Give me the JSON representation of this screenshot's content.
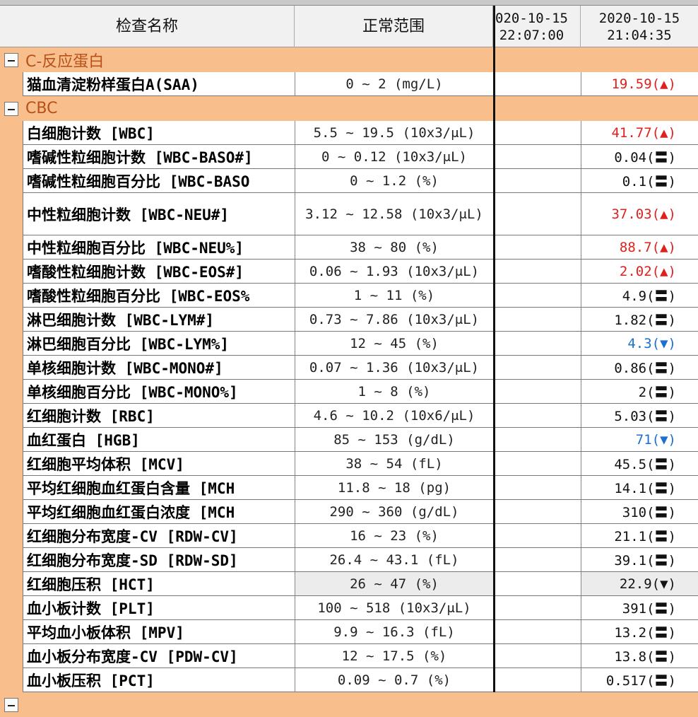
{
  "header": {
    "col_name": "检查名称",
    "col_range": "正常范围",
    "col_date1": "020-10-15\n22:07:00",
    "col_date2": "2020-10-15\n21:04:35"
  },
  "colors": {
    "group_bg": "#f8bf8c",
    "group_text": "#b8501a",
    "high": "#e0201c",
    "low": "#1a6fd0",
    "normal": "#111111"
  },
  "groups": [
    {
      "title": "C-反应蛋白",
      "rows": [
        {
          "name": "猫血清淀粉样蛋白A(SAA)",
          "range": "0 ~ 2 (mg/L)",
          "value": "19.59(▲)",
          "status": "high"
        }
      ]
    },
    {
      "title": "CBC",
      "rows": [
        {
          "name": "白细胞计数 [WBC]",
          "range": "5.5 ~ 19.5 (10x3/μL)",
          "value": "41.77(▲)",
          "status": "high"
        },
        {
          "name": "嗜碱性粒细胞计数 [WBC-BASO#]",
          "range": "0 ~ 0.12 (10x3/μL)",
          "value": "0.04(〓)",
          "status": "normal"
        },
        {
          "name": "嗜碱性粒细胞百分比 [WBC-BASO",
          "range": "0 ~ 1.2 (%)",
          "value": "0.1(〓)",
          "status": "normal"
        },
        {
          "name": "中性粒细胞计数 [WBC-NEU#]",
          "range": "3.12 ~ 12.58 (10x3/μL)",
          "value": "37.03(▲)",
          "status": "high",
          "tall": true
        },
        {
          "name": "中性粒细胞百分比 [WBC-NEU%]",
          "range": "38 ~ 80 (%)",
          "value": "88.7(▲)",
          "status": "high"
        },
        {
          "name": "嗜酸性粒细胞计数 [WBC-EOS#]",
          "range": "0.06 ~ 1.93 (10x3/μL)",
          "value": "2.02(▲)",
          "status": "high"
        },
        {
          "name": "嗜酸性粒细胞百分比 [WBC-EOS%",
          "range": "1 ~ 11 (%)",
          "value": "4.9(〓)",
          "status": "normal"
        },
        {
          "name": "淋巴细胞计数 [WBC-LYM#]",
          "range": "0.73 ~ 7.86 (10x3/μL)",
          "value": "1.82(〓)",
          "status": "normal"
        },
        {
          "name": "淋巴细胞百分比 [WBC-LYM%]",
          "range": "12 ~ 45 (%)",
          "value": "4.3(▼)",
          "status": "low"
        },
        {
          "name": "单核细胞计数 [WBC-MONO#]",
          "range": "0.07 ~ 1.36 (10x3/μL)",
          "value": "0.86(〓)",
          "status": "normal"
        },
        {
          "name": "单核细胞百分比 [WBC-MONO%]",
          "range": "1 ~ 8 (%)",
          "value": "2(〓)",
          "status": "normal"
        },
        {
          "name": "红细胞计数 [RBC]",
          "range": "4.6 ~ 10.2 (10x6/μL)",
          "value": "5.03(〓)",
          "status": "normal"
        },
        {
          "name": "血红蛋白 [HGB]",
          "range": "85 ~ 153 (g/dL)",
          "value": "71(▼)",
          "status": "low"
        },
        {
          "name": "红细胞平均体积 [MCV]",
          "range": "38 ~ 54 (fL)",
          "value": "45.5(〓)",
          "status": "normal"
        },
        {
          "name": "平均红细胞血红蛋白含量  [MCH",
          "range": "11.8 ~ 18 (pg)",
          "value": "14.1(〓)",
          "status": "normal"
        },
        {
          "name": "平均红细胞血红蛋白浓度  [MCH",
          "range": "290 ~ 360 (g/dL)",
          "value": "310(〓)",
          "status": "normal"
        },
        {
          "name": "红细胞分布宽度-CV [RDW-CV]",
          "range": "16 ~ 23 (%)",
          "value": "21.1(〓)",
          "status": "normal"
        },
        {
          "name": "红细胞分布宽度-SD [RDW-SD]",
          "range": "26.4 ~ 43.1 (fL)",
          "value": "39.1(〓)",
          "status": "normal"
        },
        {
          "name": "红细胞压积 [HCT]",
          "range": "26 ~ 47 (%)",
          "value": "22.9(▼)",
          "status": "low-selected",
          "highlighted": true
        },
        {
          "name": "血小板计数 [PLT]",
          "range": "100 ~ 518 (10x3/μL)",
          "value": "391(〓)",
          "status": "normal"
        },
        {
          "name": "平均血小板体积 [MPV]",
          "range": "9.9 ~ 16.3 (fL)",
          "value": "13.2(〓)",
          "status": "normal"
        },
        {
          "name": "血小板分布宽度-CV [PDW-CV]",
          "range": "12 ~ 17.5 (%)",
          "value": "13.8(〓)",
          "status": "normal"
        },
        {
          "name": "血小板压积 [PCT]",
          "range": "0.09 ~ 0.7 (%)",
          "value": "0.517(〓)",
          "status": "normal"
        }
      ]
    }
  ]
}
